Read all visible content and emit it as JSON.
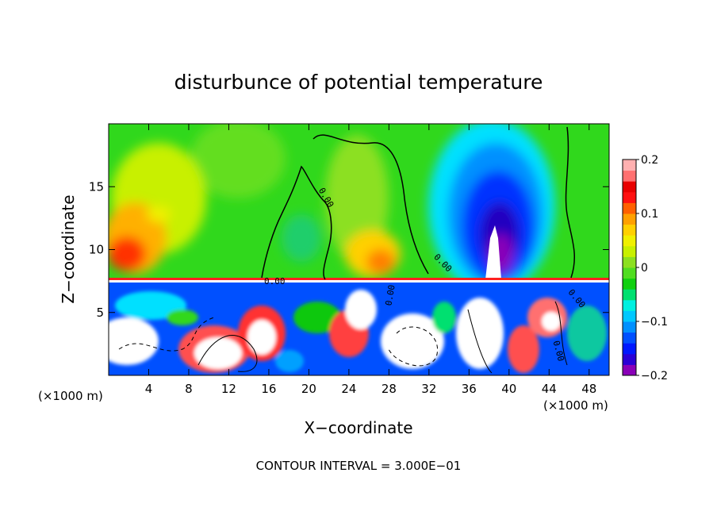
{
  "chart_data": {
    "type": "heatmap",
    "title": "disturbunce of potential temperature",
    "xlabel": "X−coordinate",
    "ylabel": "Z−coordinate",
    "x_unit": "(×1000 m)",
    "x_unit_right": "(×1000 m)",
    "xlim": [
      0,
      50
    ],
    "ylim": [
      0,
      20
    ],
    "x_ticks": [
      4,
      8,
      12,
      16,
      20,
      24,
      28,
      32,
      36,
      40,
      44,
      48
    ],
    "y_ticks": [
      5,
      10,
      15
    ],
    "colorbar": {
      "min": -0.2,
      "max": 0.2,
      "tick_values": [
        0.2,
        0.1,
        0,
        -0.1,
        -0.2
      ],
      "tick_labels": [
        "0.2",
        "0.1",
        "0",
        "−0.1",
        "−0.2"
      ],
      "colors": [
        "#8a00b8",
        "#2a00d6",
        "#0018ff",
        "#0050ff",
        "#0090ff",
        "#00c8ff",
        "#00f0e0",
        "#00e070",
        "#10d010",
        "#50dd20",
        "#8ce020",
        "#c8f000",
        "#f0f000",
        "#ffd000",
        "#ffa000",
        "#ff6000",
        "#ff1010",
        "#e80000",
        "#ff7070",
        "#ffb0b0"
      ]
    },
    "contour_label": "0.00",
    "grid": false,
    "legend": "colorbar right",
    "footer": "CONTOUR INTERVAL = 3.000E−01"
  }
}
